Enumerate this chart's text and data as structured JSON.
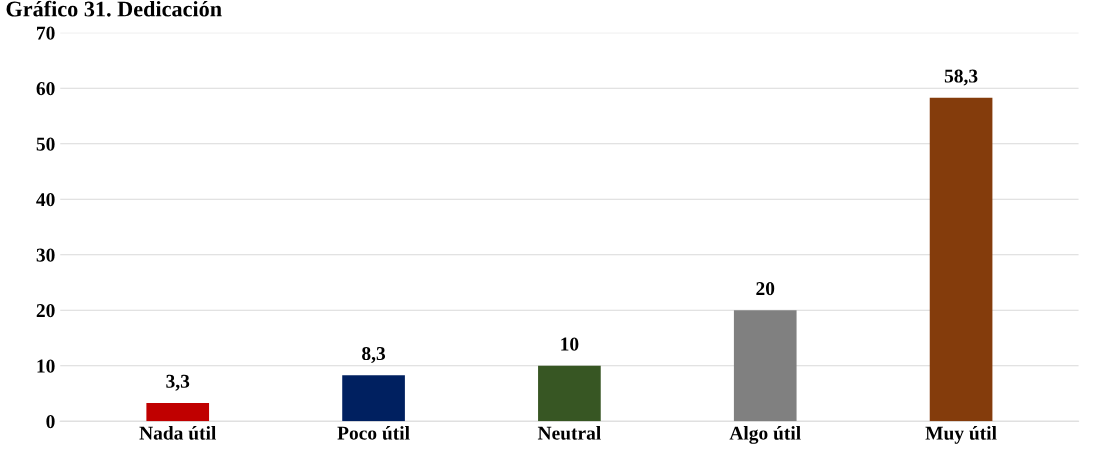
{
  "chart_data": {
    "type": "bar",
    "title": "Gráfico 31. Dedicación",
    "categories": [
      "Nada útil",
      "Poco útil",
      "Neutral",
      "Algo útil",
      "Muy útil"
    ],
    "values": [
      3.3,
      8.3,
      10,
      20,
      58.3
    ],
    "colors": [
      "#c00000",
      "#002060",
      "#375623",
      "#808080",
      "#843c0c"
    ],
    "value_labels": [
      "3,3",
      "8,3",
      "10",
      "20",
      "58,3"
    ],
    "ylim": [
      0,
      70
    ],
    "yticks": [
      0,
      10,
      20,
      30,
      40,
      50,
      60,
      70
    ],
    "grid": "y",
    "legend": false
  }
}
